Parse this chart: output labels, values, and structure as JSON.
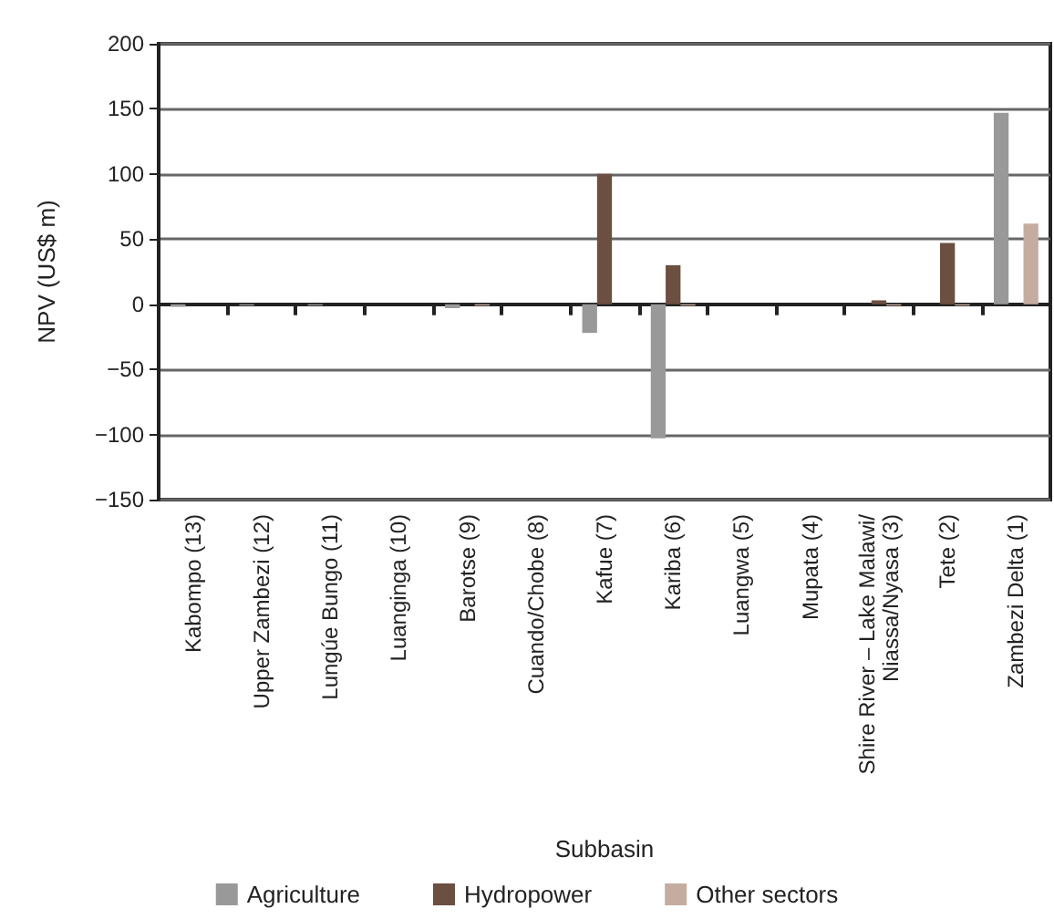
{
  "chart_data": {
    "type": "bar",
    "xlabel": "Subbasin",
    "ylabel": "NPV (US$ m)",
    "categories": [
      "Kabompo (13)",
      "Upper Zambezi (12)",
      "Lungúe Bungo (11)",
      "Luanginga (10)",
      "Barotse (9)",
      "Cuando/Chobe (8)",
      "Kafue (7)",
      "Kariba (6)",
      "Luangwa (5)",
      "Mupata (4)",
      "Shire River – Lake Malawi/Niassa/Nyasa (3)",
      "Tete (2)",
      "Zambezi Delta (1)"
    ],
    "series": [
      {
        "name": "Agriculture",
        "color": "#999999",
        "values": [
          -2,
          -1,
          -1,
          0,
          -3,
          0,
          -22,
          -103,
          0,
          0,
          0,
          0,
          147
        ]
      },
      {
        "name": "Hydropower",
        "color": "#6b4f41",
        "values": [
          0,
          0,
          0,
          0,
          0,
          0,
          100,
          30,
          0,
          0,
          3,
          47,
          0
        ]
      },
      {
        "name": "Other sectors",
        "color": "#c4ada0",
        "values": [
          0,
          0,
          0,
          0,
          -1,
          0,
          0,
          -1,
          0,
          0,
          -1,
          -1,
          62
        ]
      }
    ],
    "ylim": [
      -150,
      200
    ],
    "yticks": [
      -150,
      -100,
      -50,
      0,
      50,
      100,
      150,
      200
    ],
    "grid": "y",
    "legend": "bottom"
  }
}
